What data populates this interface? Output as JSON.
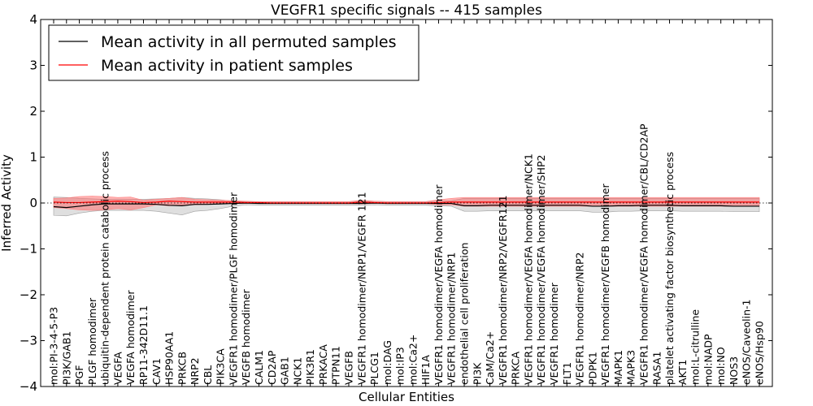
{
  "chart_data": {
    "type": "line",
    "title": "VEGFR1 specific signals -- 415 samples",
    "xlabel": "Cellular Entities",
    "ylabel": "Inferred Activity",
    "ylim": [
      -4,
      4
    ],
    "yticks": [
      "−4",
      "−3",
      "−2",
      "−1",
      "0",
      "1",
      "2",
      "3",
      "4"
    ],
    "grid": false,
    "legend_position": "top-left",
    "categories": [
      "mol:PI-3-4-5-P3",
      "PI3K/GAB1",
      "PGF",
      "PLGF homodimer",
      "ubiquitin-dependent protein catabolic process",
      "VEGFA",
      "VEGFA homodimer",
      "RP11-342D11.1",
      "CAV1",
      "HSP90AA1",
      "PRKCB",
      "NRP2",
      "CBL",
      "PIK3CA",
      "VEGFR1 homodimer/PLGF homodimer",
      "VEGFB homodimer",
      "CALM1",
      "CD2AP",
      "GAB1",
      "NCK1",
      "PIK3R1",
      "PRKACA",
      "PTPN11",
      "VEGFB",
      "VEGFR1 homodimer/NRP1/VEGFR 121",
      "PLCG1",
      "mol:DAG",
      "mol:IP3",
      "mol:Ca2+",
      "HIF1A",
      "VEGFR1 homodimer/VEGFA homodimer",
      "VEGFR1 homodimer/NRP1",
      "endothelial cell proliferation",
      "PI3K",
      "CaM/Ca2+",
      "VEGFR1 homodimer/NRP2/VEGFR121",
      "PRKCA",
      "VEGFR1 homodimer/VEGFA homodimer/NCK1",
      "VEGFR1 homodimer/VEGFA homodimer/SHP2",
      "VEGFR1 homodimer",
      "FLT1",
      "VEGFR1 homodimer/NRP2",
      "PDPK1",
      "VEGFR1 homodimer/VEGFB homodimer",
      "MAPK1",
      "MAPK3",
      "VEGFR1 homodimer/VEGFA homodimer/CBL/CD2AP",
      "RASA1",
      "platelet activating factor biosynthetic process",
      "AKT1",
      "mol:L-citrulline",
      "mol:NADP",
      "mol:NO",
      "NOS3",
      "eNOS/Caveolin-1",
      "eNOS/Hsp90"
    ],
    "series": [
      {
        "name": "Mean activity in all permuted samples",
        "color": "#000000",
        "values": [
          -0.08,
          -0.1,
          -0.07,
          -0.04,
          -0.02,
          -0.02,
          -0.02,
          -0.02,
          -0.03,
          -0.05,
          -0.06,
          -0.03,
          -0.03,
          -0.02,
          -0.01,
          0.0,
          -0.01,
          -0.01,
          -0.01,
          -0.01,
          -0.01,
          -0.01,
          -0.01,
          -0.01,
          -0.01,
          0.0,
          -0.01,
          -0.01,
          -0.01,
          -0.01,
          -0.01,
          -0.01,
          -0.06,
          -0.06,
          -0.05,
          -0.05,
          -0.05,
          -0.05,
          -0.05,
          -0.05,
          -0.05,
          -0.05,
          -0.07,
          -0.07,
          -0.06,
          -0.06,
          -0.05,
          -0.05,
          -0.05,
          -0.06,
          -0.06,
          -0.06,
          -0.06,
          -0.07,
          -0.07,
          -0.07
        ],
        "band_low": [
          -0.27,
          -0.28,
          -0.22,
          -0.18,
          -0.16,
          -0.16,
          -0.16,
          -0.16,
          -0.18,
          -0.22,
          -0.26,
          -0.18,
          -0.16,
          -0.12,
          -0.07,
          -0.04,
          -0.05,
          -0.05,
          -0.05,
          -0.05,
          -0.05,
          -0.05,
          -0.05,
          -0.05,
          -0.05,
          -0.04,
          -0.05,
          -0.05,
          -0.05,
          -0.05,
          -0.06,
          -0.07,
          -0.18,
          -0.18,
          -0.17,
          -0.17,
          -0.17,
          -0.17,
          -0.17,
          -0.17,
          -0.17,
          -0.17,
          -0.2,
          -0.2,
          -0.18,
          -0.18,
          -0.17,
          -0.17,
          -0.17,
          -0.18,
          -0.18,
          -0.18,
          -0.18,
          -0.19,
          -0.19,
          -0.19
        ],
        "band_high": [
          0.13,
          0.12,
          0.1,
          0.09,
          0.08,
          0.08,
          0.08,
          0.08,
          0.09,
          0.1,
          0.12,
          0.1,
          0.09,
          0.07,
          0.04,
          0.03,
          0.03,
          0.03,
          0.03,
          0.03,
          0.03,
          0.03,
          0.03,
          0.03,
          0.04,
          0.04,
          0.03,
          0.03,
          0.03,
          0.03,
          0.04,
          0.05,
          0.1,
          0.1,
          0.1,
          0.1,
          0.1,
          0.1,
          0.1,
          0.1,
          0.1,
          0.1,
          0.1,
          0.1,
          0.1,
          0.1,
          0.1,
          0.1,
          0.1,
          0.1,
          0.1,
          0.1,
          0.1,
          0.1,
          0.1,
          0.1
        ]
      },
      {
        "name": "Mean activity in patient samples",
        "color": "#ff0000",
        "values": [
          0.02,
          0.01,
          0.01,
          0.02,
          0.03,
          0.04,
          0.03,
          0.01,
          0.02,
          0.04,
          0.03,
          0.02,
          0.02,
          0.02,
          0.02,
          0.01,
          0.01,
          0.0,
          0.0,
          0.0,
          0.0,
          0.0,
          0.0,
          0.0,
          0.02,
          0.01,
          0.0,
          0.0,
          0.0,
          0.0,
          0.01,
          0.02,
          0.02,
          0.02,
          0.02,
          0.02,
          0.02,
          0.02,
          0.02,
          0.02,
          0.02,
          0.02,
          0.02,
          0.02,
          0.02,
          0.02,
          0.02,
          0.02,
          0.02,
          0.02,
          0.02,
          0.02,
          0.02,
          0.02,
          0.02,
          0.02
        ],
        "band_low": [
          -0.1,
          -0.12,
          -0.15,
          -0.16,
          -0.15,
          -0.12,
          -0.15,
          -0.1,
          -0.04,
          -0.06,
          -0.05,
          -0.04,
          -0.03,
          -0.02,
          -0.01,
          -0.01,
          -0.01,
          -0.01,
          -0.01,
          -0.01,
          -0.01,
          -0.01,
          -0.01,
          -0.01,
          -0.02,
          -0.01,
          -0.01,
          -0.01,
          -0.01,
          -0.01,
          -0.04,
          -0.04,
          -0.07,
          -0.07,
          -0.07,
          -0.07,
          -0.07,
          -0.07,
          -0.07,
          -0.07,
          -0.07,
          -0.07,
          -0.07,
          -0.07,
          -0.07,
          -0.07,
          -0.07,
          -0.07,
          -0.07,
          -0.07,
          -0.07,
          -0.07,
          -0.07,
          -0.07,
          -0.07,
          -0.07
        ],
        "band_high": [
          0.1,
          0.11,
          0.14,
          0.15,
          0.14,
          0.12,
          0.13,
          0.06,
          0.08,
          0.1,
          0.12,
          0.08,
          0.07,
          0.06,
          0.05,
          0.04,
          0.03,
          0.03,
          0.03,
          0.03,
          0.03,
          0.03,
          0.03,
          0.03,
          0.06,
          0.04,
          0.03,
          0.03,
          0.03,
          0.03,
          0.07,
          0.1,
          0.12,
          0.12,
          0.12,
          0.12,
          0.12,
          0.12,
          0.12,
          0.12,
          0.12,
          0.12,
          0.12,
          0.12,
          0.12,
          0.12,
          0.12,
          0.12,
          0.12,
          0.12,
          0.12,
          0.12,
          0.12,
          0.12,
          0.12,
          0.12
        ]
      }
    ]
  }
}
